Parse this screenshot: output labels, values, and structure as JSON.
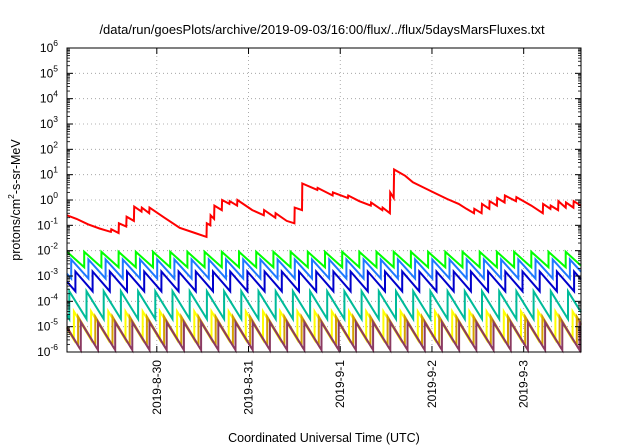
{
  "chart_data": {
    "type": "line",
    "title": "/data/run/goesPlots/archive/2019-09-03/16:00/flux/../flux/5daysMarsFluxes.txt",
    "xlabel": "Coordinated Universal Time (UTC)",
    "ylabel": "protons/cm2-s-sr-MeV",
    "ylabel_parts": {
      "a": "protons/cm",
      "sup": "2",
      "b": "-s-sr-MeV"
    },
    "y_scale": "log",
    "ylim": [
      1e-06,
      1000000.0
    ],
    "xlim": [
      "2019-08-29 00:30",
      "2019-09-03 15:00"
    ],
    "x_ticks": [
      {
        "value": "2019-08-30 00:00",
        "label": "2019-8-30"
      },
      {
        "value": "2019-08-31 00:00",
        "label": "2019-8-31"
      },
      {
        "value": "2019-09-01 00:00",
        "label": "2019-9-1"
      },
      {
        "value": "2019-09-02 00:00",
        "label": "2019-9-2"
      },
      {
        "value": "2019-09-03 00:00",
        "label": "2019-9-3"
      }
    ],
    "y_ticks": [
      {
        "value": 1e-06,
        "base": "10",
        "exp": "-6"
      },
      {
        "value": 1e-05,
        "base": "10",
        "exp": "-5"
      },
      {
        "value": 0.0001,
        "base": "10",
        "exp": "-4"
      },
      {
        "value": 0.001,
        "base": "10",
        "exp": "-3"
      },
      {
        "value": 0.01,
        "base": "10",
        "exp": "-2"
      },
      {
        "value": 0.1,
        "base": "10",
        "exp": "-1"
      },
      {
        "value": 1,
        "base": "10",
        "exp": "0"
      },
      {
        "value": 10,
        "base": "10",
        "exp": "1"
      },
      {
        "value": 100,
        "base": "10",
        "exp": "2"
      },
      {
        "value": 1000,
        "base": "10",
        "exp": "3"
      },
      {
        "value": 10000,
        "base": "10",
        "exp": "4"
      },
      {
        "value": 100000,
        "base": "10",
        "exp": "5"
      },
      {
        "value": 1000000,
        "base": "10",
        "exp": "6"
      }
    ],
    "grid": true,
    "legend": "none",
    "series": [
      {
        "color": "#ff0000",
        "points": [
          [
            "2019-08-29 00:30",
            0.25
          ],
          [
            "2019-08-29 03:00",
            0.18
          ],
          [
            "2019-08-29 06:00",
            0.11
          ],
          [
            "2019-08-29 09:00",
            0.075
          ],
          [
            "2019-08-29 12:00",
            0.055
          ],
          [
            "2019-08-29 12:05",
            0.07
          ],
          [
            "2019-08-29 14:00",
            0.05
          ],
          [
            "2019-08-29 14:05",
            0.12
          ],
          [
            "2019-08-29 16:00",
            0.09
          ],
          [
            "2019-08-29 16:05",
            0.22
          ],
          [
            "2019-08-29 18:00",
            0.15
          ],
          [
            "2019-08-29 18:05",
            0.55
          ],
          [
            "2019-08-29 20:00",
            0.35
          ],
          [
            "2019-08-29 20:05",
            0.5
          ],
          [
            "2019-08-29 22:00",
            0.3
          ],
          [
            "2019-08-29 22:05",
            0.5
          ],
          [
            "2019-08-30 02:00",
            0.2
          ],
          [
            "2019-08-30 06:00",
            0.08
          ],
          [
            "2019-08-30 10:00",
            0.05
          ],
          [
            "2019-08-30 13:00",
            0.035
          ],
          [
            "2019-08-30 13:05",
            0.12
          ],
          [
            "2019-08-30 14:00",
            0.1
          ],
          [
            "2019-08-30 14:05",
            0.25
          ],
          [
            "2019-08-30 15:00",
            0.18
          ],
          [
            "2019-08-30 15:05",
            0.6
          ],
          [
            "2019-08-30 17:00",
            0.4
          ],
          [
            "2019-08-30 17:05",
            1.0
          ],
          [
            "2019-08-30 19:00",
            0.7
          ],
          [
            "2019-08-30 19:05",
            0.9
          ],
          [
            "2019-08-30 21:00",
            0.6
          ],
          [
            "2019-08-30 21:05",
            1.0
          ],
          [
            "2019-08-31 01:00",
            0.4
          ],
          [
            "2019-08-31 04:00",
            0.25
          ],
          [
            "2019-08-31 04:05",
            0.4
          ],
          [
            "2019-08-31 07:00",
            0.2
          ],
          [
            "2019-08-31 07:05",
            0.3
          ],
          [
            "2019-08-31 10:00",
            0.15
          ],
          [
            "2019-08-31 12:00",
            0.12
          ],
          [
            "2019-08-31 12:05",
            0.5
          ],
          [
            "2019-08-31 14:00",
            0.4
          ],
          [
            "2019-08-31 14:05",
            4.5
          ],
          [
            "2019-08-31 18:00",
            2.5
          ],
          [
            "2019-08-31 18:05",
            3.0
          ],
          [
            "2019-08-31 22:00",
            1.5
          ],
          [
            "2019-08-31 22:05",
            2.0
          ],
          [
            "2019-09-01 02:00",
            1.2
          ],
          [
            "2019-09-01 02:05",
            1.5
          ],
          [
            "2019-09-01 05:00",
            0.9
          ],
          [
            "2019-09-01 08:00",
            0.6
          ],
          [
            "2019-09-01 08:05",
            0.8
          ],
          [
            "2019-09-01 11:00",
            0.4
          ],
          [
            "2019-09-01 11:05",
            0.5
          ],
          [
            "2019-09-01 13:00",
            0.3
          ],
          [
            "2019-09-01 13:05",
            2.0
          ],
          [
            "2019-09-01 14:00",
            1.2
          ],
          [
            "2019-09-01 14:05",
            16
          ],
          [
            "2019-09-01 17:00",
            9
          ],
          [
            "2019-09-01 19:00",
            5
          ],
          [
            "2019-09-01 22:00",
            3
          ],
          [
            "2019-09-02 01:00",
            1.8
          ],
          [
            "2019-09-02 04:00",
            1.1
          ],
          [
            "2019-09-02 07:00",
            0.7
          ],
          [
            "2019-09-02 09:00",
            0.45
          ],
          [
            "2019-09-02 11:00",
            0.3
          ],
          [
            "2019-09-02 11:05",
            0.45
          ],
          [
            "2019-09-02 13:00",
            0.3
          ],
          [
            "2019-09-02 13:05",
            0.7
          ],
          [
            "2019-09-02 15:00",
            0.45
          ],
          [
            "2019-09-02 15:05",
            0.9
          ],
          [
            "2019-09-02 17:00",
            0.6
          ],
          [
            "2019-09-02 17:05",
            1.2
          ],
          [
            "2019-09-02 19:00",
            0.8
          ],
          [
            "2019-09-02 19:05",
            1.5
          ],
          [
            "2019-09-02 22:00",
            0.9
          ],
          [
            "2019-09-02 22:05",
            1.3
          ],
          [
            "2019-09-03 02:00",
            0.6
          ],
          [
            "2019-09-03 05:00",
            0.3
          ],
          [
            "2019-09-03 05:05",
            0.7
          ],
          [
            "2019-09-03 07:00",
            0.45
          ],
          [
            "2019-09-03 07:05",
            0.6
          ],
          [
            "2019-09-03 09:00",
            0.4
          ],
          [
            "2019-09-03 09:05",
            0.9
          ],
          [
            "2019-09-03 11:00",
            0.5
          ],
          [
            "2019-09-03 11:05",
            0.8
          ],
          [
            "2019-09-03 13:00",
            0.5
          ],
          [
            "2019-09-03 13:05",
            0.9
          ],
          [
            "2019-09-03 15:00",
            0.6
          ]
        ]
      },
      {
        "color": "#00ff00",
        "sawtooth": {
          "peak": 0.009,
          "trough": 0.0022,
          "period_hours": 4.5,
          "phase_hours": 0.0
        }
      },
      {
        "color": "#1e78ff",
        "sawtooth": {
          "peak": 0.0045,
          "trough": 0.0008,
          "period_hours": 4.5,
          "phase_hours": 1.1
        }
      },
      {
        "color": "#0000cc",
        "sawtooth": {
          "peak": 0.0015,
          "trough": 0.00025,
          "period_hours": 4.5,
          "phase_hours": 2.2
        }
      },
      {
        "color": "#00bb99",
        "sawtooth": {
          "peak": 0.00025,
          "trough": 2e-05,
          "period_hours": 4.5,
          "phase_hours": 0.6
        }
      },
      {
        "color": "#ffff00",
        "sawtooth": {
          "peak": 4e-05,
          "trough": 3e-06,
          "period_hours": 4.5,
          "phase_hours": 1.8
        }
      },
      {
        "color": "#d4a000",
        "sawtooth": {
          "peak": 2.5e-05,
          "trough": 1.8e-06,
          "period_hours": 4.5,
          "phase_hours": 2.9
        }
      },
      {
        "color": "#8b3a62",
        "sawtooth": {
          "peak": 1.5e-05,
          "trough": 1.2e-06,
          "period_hours": 4.5,
          "phase_hours": 3.6
        }
      }
    ]
  }
}
